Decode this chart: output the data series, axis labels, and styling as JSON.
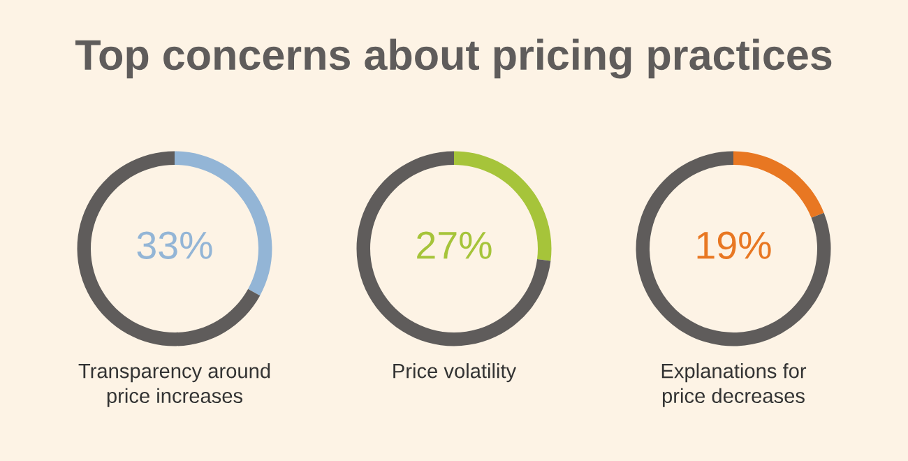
{
  "chart_data": [
    {
      "type": "donut",
      "title": "Top concerns about pricing practices",
      "xlabel": "Transparency around\nprice increases",
      "categories": [
        null,
        null
      ],
      "values": [
        33,
        67
      ],
      "colors": [
        "#93b5d6",
        "#5f5c5b"
      ],
      "value_labels": [
        "33%",
        null
      ]
    },
    {
      "type": "donut",
      "xlabel": "Price volatility",
      "categories": [
        null,
        null
      ],
      "values": [
        27,
        73
      ],
      "colors": [
        "#a6c43a",
        "#5f5c5b"
      ],
      "value_labels": [
        "27%",
        null
      ]
    },
    {
      "type": "donut",
      "xlabel": "Explanations for\nprice decreases",
      "categories": [
        null,
        null
      ],
      "values": [
        19,
        81
      ],
      "colors": [
        "#e87722",
        "#5f5c5b"
      ],
      "value_labels": [
        "19%",
        null
      ]
    }
  ]
}
